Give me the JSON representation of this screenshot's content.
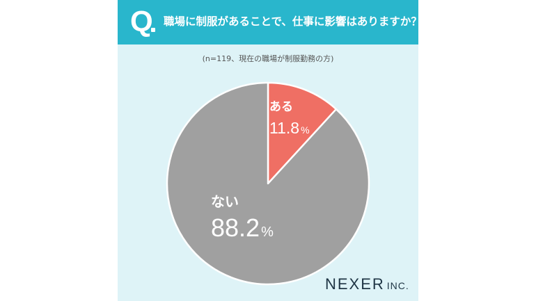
{
  "header": {
    "q_letter": "Q",
    "question": "職場に制服があることで、仕事に影響はありますか？"
  },
  "note": "(n=119、現在の職場が制服勤務の方)",
  "chart_data": {
    "type": "pie",
    "categories": [
      "ある",
      "ない"
    ],
    "values": [
      11.8,
      88.2
    ],
    "value_labels": [
      "11.8",
      "88.2"
    ],
    "unit": "%",
    "colors": [
      "#ef6f64",
      "#a0a0a0"
    ]
  },
  "brand": {
    "name": "NEXER",
    "suffix": "INC."
  }
}
